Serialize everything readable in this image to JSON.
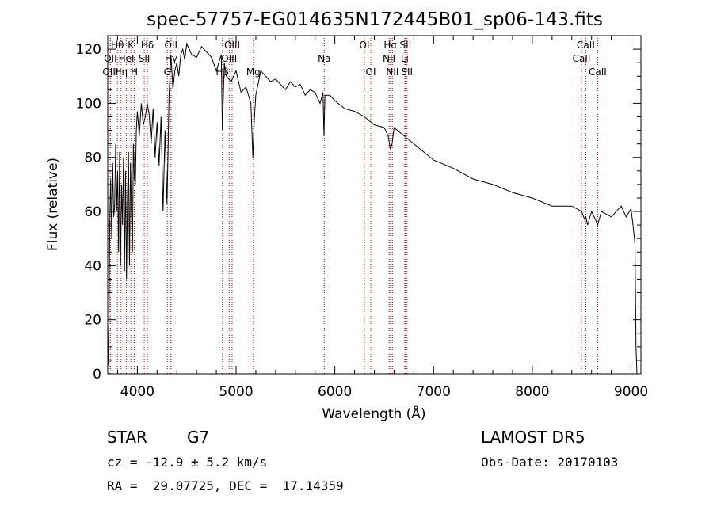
{
  "chart_data": {
    "type": "line",
    "title": "spec-57757-EG014635N172445B01_sp06-143.fits",
    "xlabel": "Wavelength (Å)",
    "ylabel": "Flux (relative)",
    "xlim": [
      3700,
      9100
    ],
    "ylim": [
      0,
      125
    ],
    "xticks": [
      4000,
      5000,
      6000,
      7000,
      8000,
      9000
    ],
    "yticks": [
      0,
      20,
      40,
      60,
      80,
      100,
      120
    ],
    "grid": false,
    "series": [
      {
        "x": [
          3700,
          3710,
          3720,
          3730,
          3740,
          3750,
          3760,
          3770,
          3780,
          3790,
          3800,
          3810,
          3820,
          3830,
          3840,
          3850,
          3860,
          3870,
          3880,
          3890,
          3900,
          3910,
          3920,
          3930,
          3940,
          3950,
          3960,
          3970,
          3980,
          3990,
          4000,
          4020,
          4040,
          4060,
          4080,
          4100,
          4120,
          4140,
          4160,
          4180,
          4200,
          4220,
          4240,
          4260,
          4280,
          4300,
          4310,
          4320,
          4340,
          4360,
          4380,
          4400,
          4420,
          4440,
          4460,
          4480,
          4500,
          4550,
          4600,
          4650,
          4700,
          4750,
          4800,
          4850,
          4861,
          4880,
          4900,
          4950,
          5000,
          5050,
          5100,
          5150,
          5170,
          5184,
          5200,
          5250,
          5300,
          5350,
          5400,
          5450,
          5500,
          5550,
          5600,
          5650,
          5700,
          5750,
          5800,
          5850,
          5880,
          5890,
          5900,
          5950,
          6000,
          6100,
          6200,
          6300,
          6400,
          6500,
          6540,
          6563,
          6580,
          6600,
          6700,
          6800,
          6900,
          7000,
          7200,
          7400,
          7600,
          7800,
          8000,
          8200,
          8400,
          8500,
          8530,
          8542,
          8560,
          8600,
          8640,
          8662,
          8700,
          8800,
          8900,
          8950,
          9000,
          9020,
          9040,
          9050,
          9060
        ],
        "values": [
          18,
          3,
          55,
          72,
          50,
          78,
          58,
          62,
          85,
          60,
          75,
          45,
          82,
          40,
          70,
          55,
          80,
          38,
          75,
          35,
          65,
          82,
          40,
          78,
          60,
          45,
          85,
          72,
          70,
          90,
          97,
          88,
          100,
          92,
          95,
          100,
          96,
          85,
          98,
          80,
          93,
          77,
          95,
          60,
          90,
          63,
          80,
          102,
          118,
          105,
          112,
          115,
          110,
          118,
          120,
          116,
          122,
          118,
          117,
          121,
          119,
          117,
          112,
          118,
          90,
          115,
          110,
          108,
          112,
          104,
          106,
          100,
          80,
          94,
          103,
          112,
          110,
          108,
          109,
          107,
          105,
          108,
          106,
          107,
          103,
          105,
          104,
          100,
          104,
          88,
          103,
          103,
          101,
          98,
          97,
          95,
          92,
          91,
          88,
          83,
          85,
          91,
          88,
          85,
          82,
          79,
          76,
          72,
          70,
          67,
          65,
          62,
          62,
          60,
          57,
          58,
          55,
          60,
          57,
          55,
          60,
          58,
          62,
          58,
          61,
          55,
          48,
          10,
          0
        ]
      }
    ],
    "spectral_lines": [
      {
        "label": "Hθ",
        "x": 3798,
        "row": 1
      },
      {
        "label": "K",
        "x": 3934,
        "row": 1
      },
      {
        "label": "Hδ",
        "x": 4102,
        "row": 1
      },
      {
        "label": "OII",
        "x": 4340,
        "row": 1
      },
      {
        "label": "OIII",
        "x": 4960,
        "row": 1
      },
      {
        "label": "OI",
        "x": 6300,
        "row": 1
      },
      {
        "label": "Hα",
        "x": 6563,
        "row": 1
      },
      {
        "label": "SII",
        "x": 6716,
        "row": 1
      },
      {
        "label": "CaII",
        "x": 8542,
        "row": 1
      },
      {
        "label": "OII",
        "x": 3727,
        "row": 2
      },
      {
        "label": "HeI",
        "x": 3889,
        "row": 2
      },
      {
        "label": "SII",
        "x": 4070,
        "row": 2
      },
      {
        "label": "Hγ",
        "x": 4341,
        "row": 2
      },
      {
        "label": "OIII",
        "x": 4930,
        "row": 2
      },
      {
        "label": "Na",
        "x": 5893,
        "row": 2
      },
      {
        "label": "NII",
        "x": 6549,
        "row": 2
      },
      {
        "label": "Li",
        "x": 6708,
        "row": 2
      },
      {
        "label": "CaII",
        "x": 8498,
        "row": 2
      },
      {
        "label": "OIII",
        "x": 3727,
        "row": 3
      },
      {
        "label": "Hη",
        "x": 3835,
        "row": 3
      },
      {
        "label": "H",
        "x": 3969,
        "row": 3
      },
      {
        "label": "G",
        "x": 4304,
        "row": 3
      },
      {
        "label": "Hβ",
        "x": 4861,
        "row": 3
      },
      {
        "label": "Mg",
        "x": 5175,
        "row": 3
      },
      {
        "label": "OI",
        "x": 6364,
        "row": 3
      },
      {
        "label": "NII",
        "x": 6583,
        "row": 3
      },
      {
        "label": "SII",
        "x": 6731,
        "row": 3
      },
      {
        "label": "CaII",
        "x": 8662,
        "row": 3
      }
    ],
    "line_marker_color": "#cc0000",
    "spectrum_color": "#000000"
  },
  "info": {
    "class": "STAR",
    "subclass": "G7",
    "survey": "LAMOST DR5",
    "cz": "cz = -12.9 ± 5.2 km/s",
    "obs_date": "Obs-Date: 20170103",
    "coords": "RA =  29.07725, DEC =  17.14359"
  }
}
